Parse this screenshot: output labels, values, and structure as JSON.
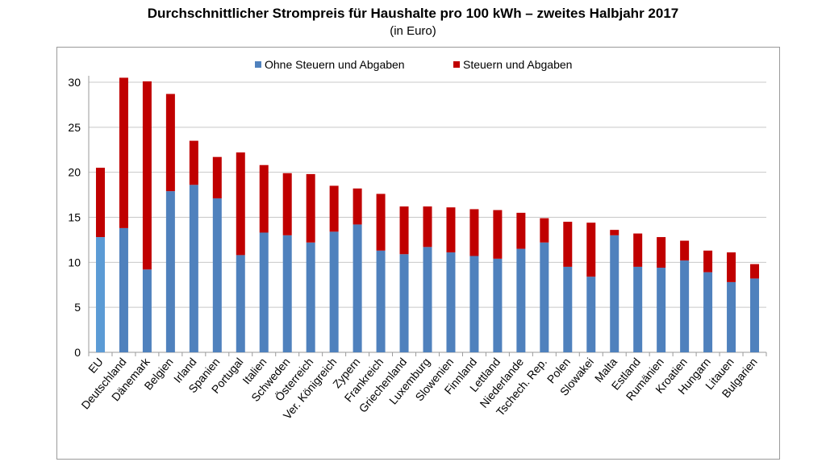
{
  "chart_data": {
    "type": "bar",
    "stacked": true,
    "title": "Durchschnittlicher Strompreis für Haushalte pro 100 kWh – zweites Halbjahr 2017",
    "subtitle": "(in Euro)",
    "xlabel": "",
    "ylabel": "",
    "ylim": [
      0,
      30
    ],
    "yticks": [
      0,
      5,
      10,
      15,
      20,
      25,
      30
    ],
    "grid": true,
    "legend_position": "top",
    "categories": [
      "EU",
      "Deutschland",
      "Dänemark",
      "Belgien",
      "Irland",
      "Spanien",
      "Portugal",
      "Italien",
      "Schweden",
      "Österreich",
      "Ver. Königreich",
      "Zypern",
      "Frankreich",
      "Griechenland",
      "Luxemburg",
      "Slowenien",
      "Finnland",
      "Lettland",
      "Niederlande",
      "Tschech. Rep.",
      "Polen",
      "Slowakei",
      "Malta",
      "Estland",
      "Rumänien",
      "Kroatien",
      "Hungarn",
      "Litauen",
      "Bulgarien"
    ],
    "series": [
      {
        "name": "Ohne Steuern und Abgaben",
        "color": "#4F81BD",
        "values": [
          12.8,
          13.8,
          9.2,
          17.9,
          18.6,
          17.1,
          10.8,
          13.3,
          13.0,
          12.2,
          13.4,
          14.2,
          11.3,
          10.9,
          11.7,
          11.1,
          10.7,
          10.4,
          11.5,
          12.2,
          9.5,
          8.4,
          13.0,
          9.5,
          9.4,
          10.2,
          8.9,
          7.8,
          8.2
        ]
      },
      {
        "name": "Steuern und Abgaben",
        "color": "#C00000",
        "values": [
          7.7,
          16.7,
          20.9,
          10.8,
          4.9,
          4.6,
          11.4,
          7.5,
          6.9,
          7.6,
          5.1,
          4.0,
          6.3,
          5.3,
          4.5,
          5.0,
          5.2,
          5.4,
          4.0,
          2.7,
          5.0,
          6.0,
          0.6,
          3.7,
          3.4,
          2.2,
          2.4,
          3.3,
          1.6
        ]
      }
    ],
    "eu_base_color": "#5B9BD5"
  }
}
